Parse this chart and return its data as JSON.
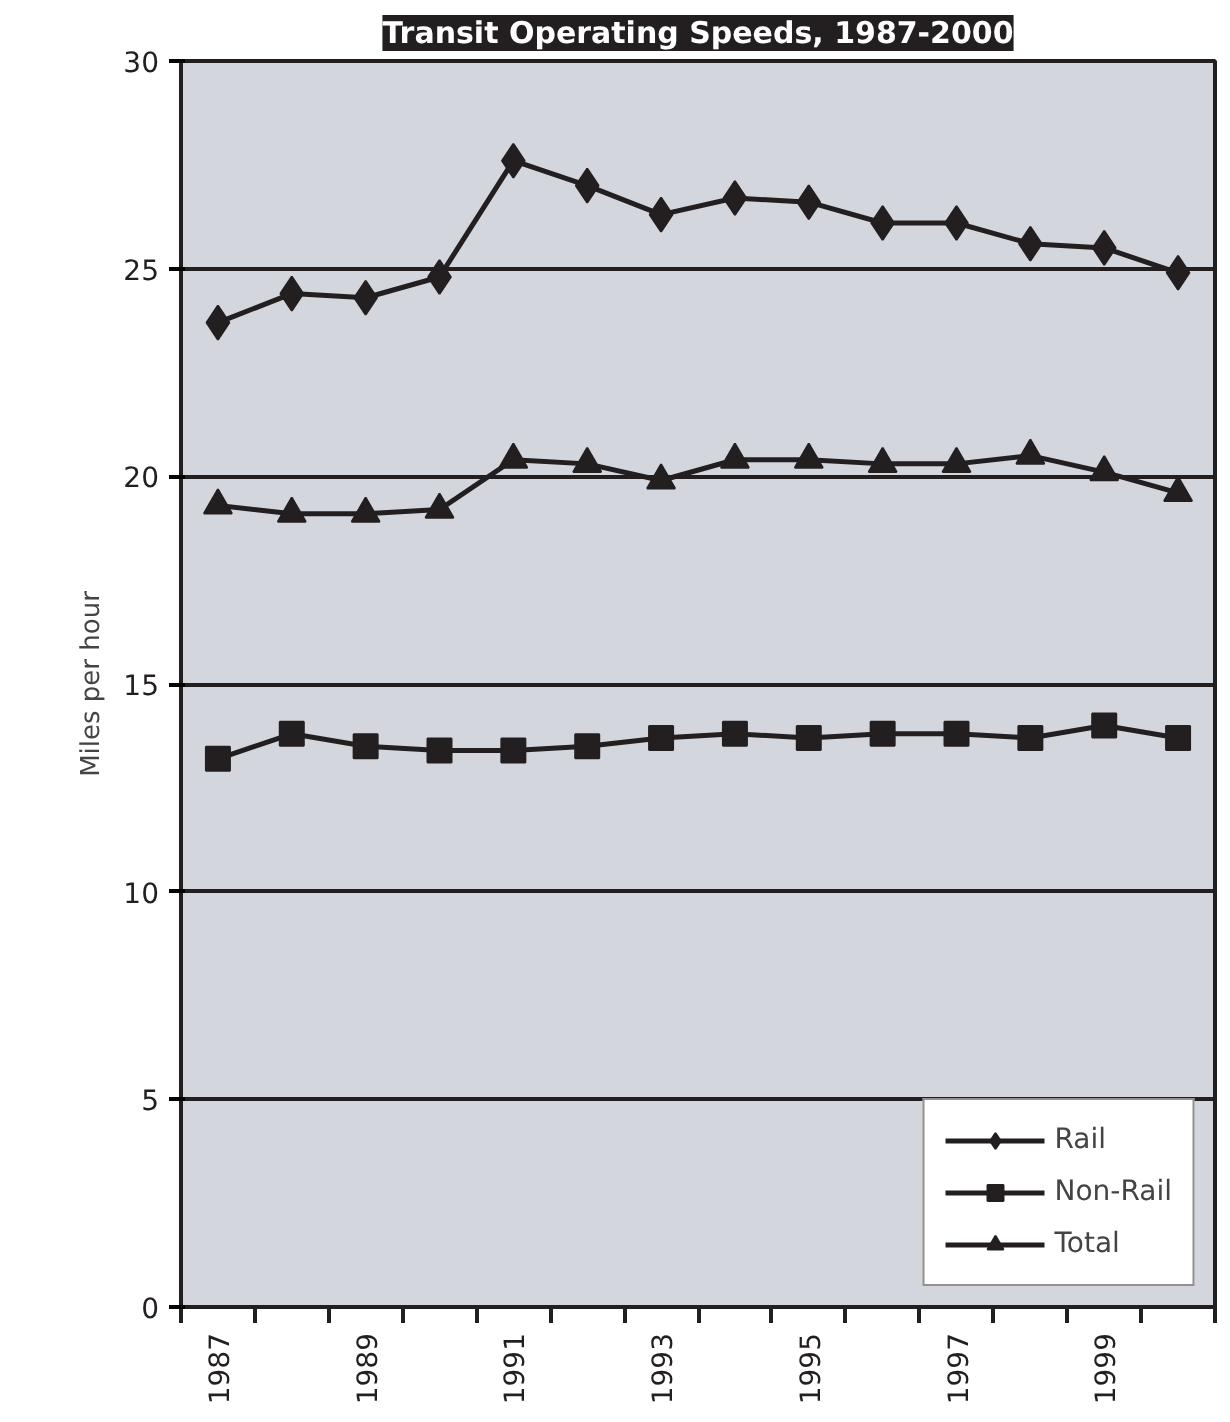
{
  "chart_data": {
    "type": "line",
    "title": "Transit Operating Speeds, 1987-2000",
    "ylabel": "Miles per hour",
    "categories": [
      "1987",
      null,
      "1989",
      null,
      "1991",
      null,
      "1993",
      null,
      "1995",
      null,
      "1997",
      null,
      "1999",
      null
    ],
    "series": [
      {
        "name": "Rail",
        "color": "#231f20",
        "marker": "diamond",
        "values": [
          23.7,
          24.4,
          24.3,
          24.8,
          27.6,
          27.0,
          26.3,
          26.7,
          26.6,
          26.1,
          26.1,
          25.6,
          25.5,
          24.9
        ]
      },
      {
        "name": "Non-Rail",
        "color": "#231f20",
        "marker": "square",
        "values": [
          13.2,
          13.8,
          13.5,
          13.4,
          13.4,
          13.5,
          13.7,
          13.8,
          13.7,
          13.8,
          13.8,
          13.7,
          14.0,
          13.7
        ]
      },
      {
        "name": "Total",
        "color": "#231f20",
        "marker": "triangle",
        "values": [
          19.3,
          19.1,
          19.1,
          19.2,
          20.4,
          20.3,
          19.9,
          20.4,
          20.4,
          20.3,
          20.3,
          20.5,
          20.1,
          19.6
        ]
      }
    ],
    "ylim": [
      0,
      30
    ],
    "yticks": [
      0,
      5,
      10,
      15,
      20,
      25,
      30
    ],
    "grid": "y",
    "legend": "bottom right",
    "line_style": "solid"
  }
}
